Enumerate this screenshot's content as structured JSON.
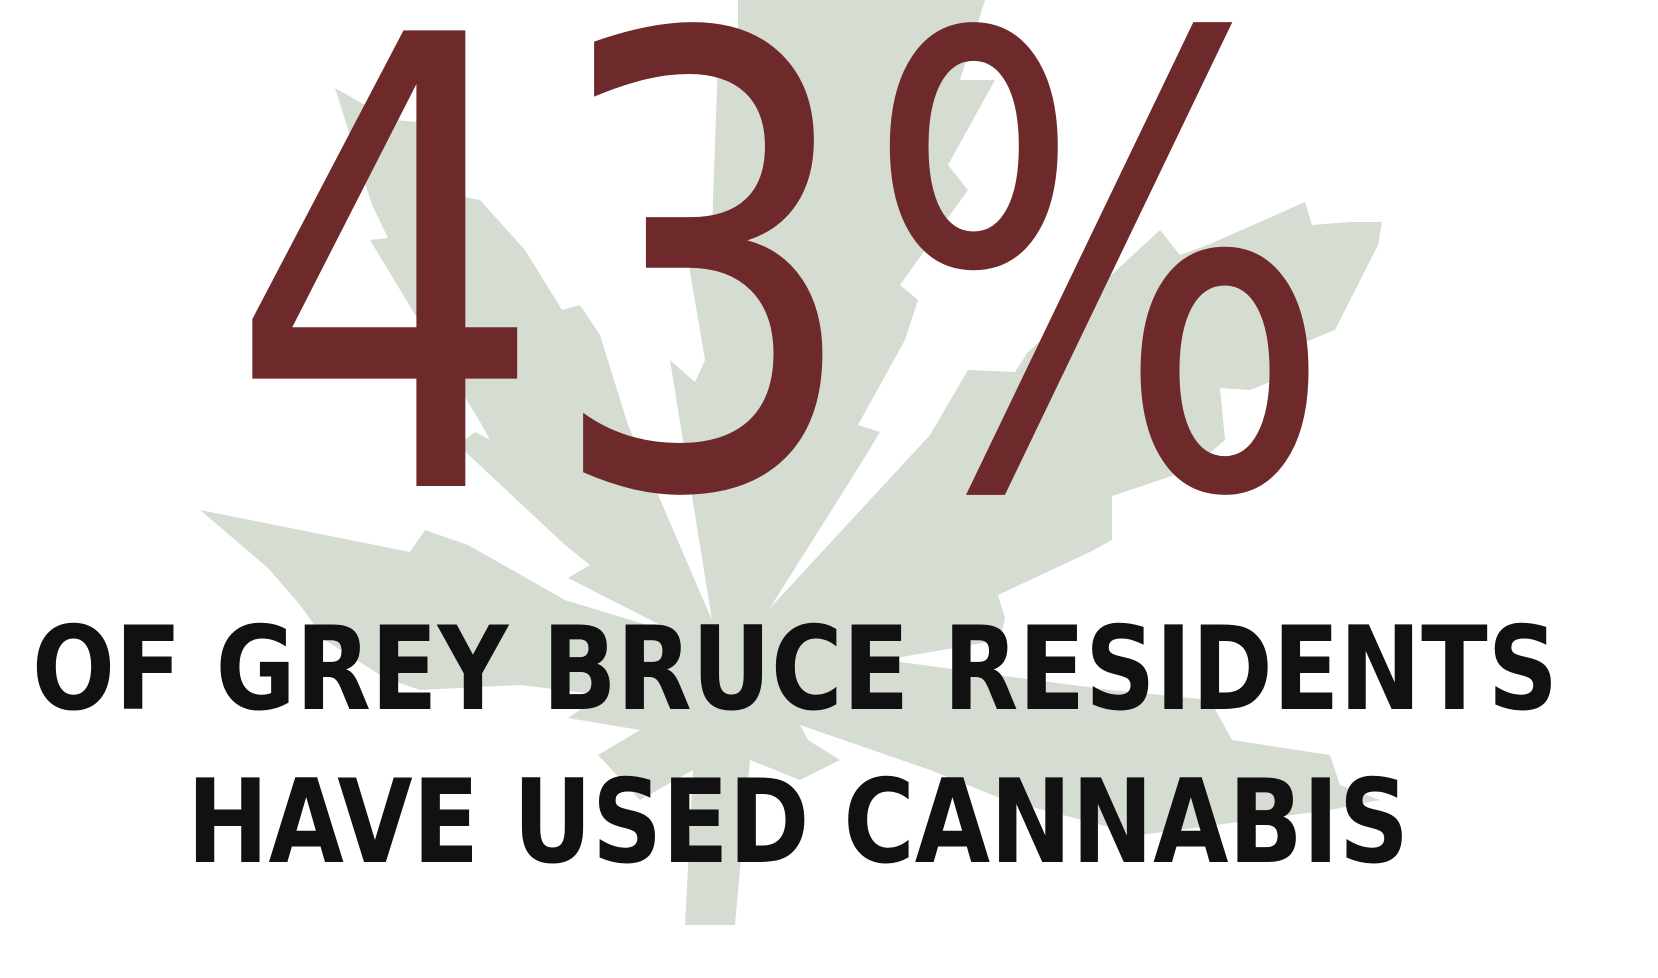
{
  "stat": "43%",
  "caption": [
    "OF GREY BRUCE RESIDENTS",
    "HAVE USED CANNABIS"
  ]
}
